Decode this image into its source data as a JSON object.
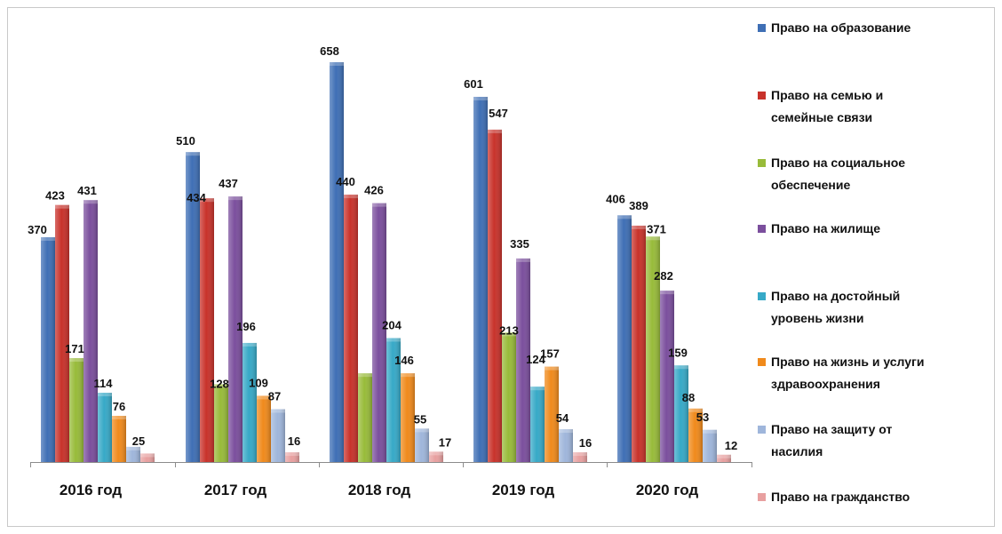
{
  "chart_data": {
    "type": "bar",
    "title": "",
    "xlabel": "",
    "ylabel": "",
    "ylim": [
      0,
      700
    ],
    "grid": false,
    "legend_position": "right",
    "categories": [
      "2016 год",
      "2017 год",
      "2018 год",
      "2019 год",
      "2020 год"
    ],
    "series": [
      {
        "name": "Право на образование",
        "color": "#3f6fb5",
        "values": [
          370,
          510,
          658,
          601,
          406
        ]
      },
      {
        "name": "Право на семью и семейные связи",
        "color": "#c8322b",
        "values": [
          423,
          434,
          440,
          547,
          389
        ]
      },
      {
        "name": "Право на социальное обеспечение",
        "color": "#98bb3a",
        "values": [
          171,
          128,
          146,
          213,
          371
        ]
      },
      {
        "name": "Право на жилище",
        "color": "#7b4f9d",
        "values": [
          431,
          437,
          426,
          335,
          282
        ]
      },
      {
        "name": "Право на достойный уровень жизни",
        "color": "#37a9c7",
        "values": [
          114,
          196,
          204,
          124,
          159
        ]
      },
      {
        "name": "Право на жизнь и услуги здравоохранения",
        "color": "#f08a1c",
        "values": [
          76,
          109,
          146,
          157,
          88
        ]
      },
      {
        "name": "Право на защиту от насилия",
        "color": "#9fb6db",
        "values": [
          25,
          87,
          55,
          54,
          53
        ]
      },
      {
        "name": "Право на гражданство",
        "color": "#e8a0a0",
        "values": [
          14,
          16,
          17,
          16,
          12
        ]
      }
    ],
    "bar_labels": [
      [
        "370",
        "423",
        "171",
        "431",
        "114",
        "76",
        "25",
        ""
      ],
      [
        "510",
        "434",
        "128",
        "437",
        "196",
        "109",
        "87",
        "16"
      ],
      [
        "658",
        "440",
        "",
        "426",
        "204",
        "146",
        "55",
        "17"
      ],
      [
        "601",
        "547",
        "213",
        "335",
        "124",
        "157",
        "54",
        "16"
      ],
      [
        "406",
        "389",
        "371",
        "282",
        "159",
        "88",
        "53",
        "12"
      ]
    ],
    "legend_lines": [
      [
        "Право на образование"
      ],
      [
        "Право на семью и",
        "семейные связи"
      ],
      [
        "Право на социальное",
        "обеспечение"
      ],
      [
        "Право на жилище"
      ],
      [
        "Право на достойный",
        "уровень жизни"
      ],
      [
        "Право на жизнь и услуги",
        "здравоохранения"
      ],
      [
        "Право на защиту от",
        "насилия"
      ],
      [
        "Право на гражданство"
      ]
    ]
  }
}
